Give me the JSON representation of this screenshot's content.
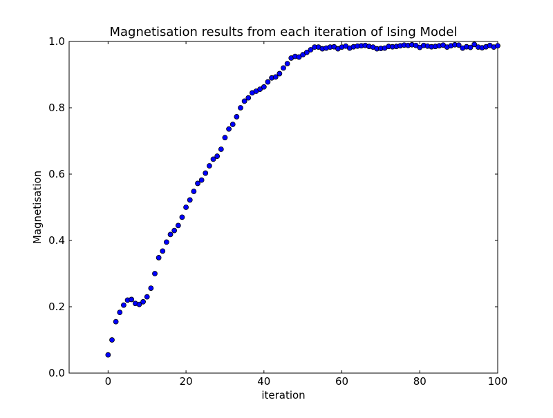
{
  "chart_data": {
    "type": "scatter",
    "title": "Magnetisation results from each iteration of Ising Model",
    "xlabel": "iteration",
    "ylabel": "Magnetisation",
    "xlim": [
      -10,
      100
    ],
    "ylim": [
      0.0,
      1.0
    ],
    "xticks": [
      0,
      20,
      40,
      60,
      80,
      100
    ],
    "xtick_labels": [
      "0",
      "20",
      "40",
      "60",
      "80",
      "100"
    ],
    "yticks": [
      0.0,
      0.2,
      0.4,
      0.6,
      0.8,
      1.0
    ],
    "ytick_labels": [
      "0.0",
      "0.2",
      "0.4",
      "0.6",
      "0.8",
      "1.0"
    ],
    "grid": false,
    "marker_color": "#0000ff",
    "marker_edge_color": "#000000",
    "series": [
      {
        "x": [
          0,
          1,
          2,
          3,
          4,
          5,
          6,
          7,
          8,
          9,
          10,
          11,
          12,
          13,
          14,
          15,
          16,
          17,
          18,
          19,
          20,
          21,
          22,
          23,
          24,
          25,
          26,
          27,
          28,
          29,
          30,
          31,
          32,
          33,
          34,
          35,
          36,
          37,
          38,
          39,
          40,
          41,
          42,
          43,
          44,
          45,
          46,
          47,
          48,
          49,
          50,
          51,
          52,
          53,
          54,
          55,
          56,
          57,
          58,
          59,
          60,
          61,
          62,
          63,
          64,
          65,
          66,
          67,
          68,
          69,
          70,
          71,
          72,
          73,
          74,
          75,
          76,
          77,
          78,
          79,
          80,
          81,
          82,
          83,
          84,
          85,
          86,
          87,
          88,
          89,
          90,
          91,
          92,
          93,
          94,
          95,
          96,
          97,
          98,
          99,
          100
        ],
        "y": [
          0.055,
          0.1,
          0.155,
          0.183,
          0.205,
          0.22,
          0.222,
          0.21,
          0.207,
          0.215,
          0.23,
          0.256,
          0.3,
          0.348,
          0.368,
          0.395,
          0.418,
          0.43,
          0.445,
          0.47,
          0.5,
          0.522,
          0.548,
          0.572,
          0.582,
          0.603,
          0.625,
          0.645,
          0.654,
          0.675,
          0.71,
          0.736,
          0.75,
          0.773,
          0.8,
          0.82,
          0.83,
          0.845,
          0.85,
          0.856,
          0.863,
          0.878,
          0.89,
          0.893,
          0.903,
          0.92,
          0.933,
          0.95,
          0.955,
          0.953,
          0.96,
          0.967,
          0.975,
          0.983,
          0.983,
          0.978,
          0.98,
          0.983,
          0.984,
          0.978,
          0.983,
          0.986,
          0.98,
          0.984,
          0.986,
          0.987,
          0.988,
          0.985,
          0.983,
          0.978,
          0.979,
          0.98,
          0.985,
          0.984,
          0.985,
          0.987,
          0.989,
          0.988,
          0.99,
          0.988,
          0.982,
          0.988,
          0.986,
          0.984,
          0.985,
          0.987,
          0.989,
          0.983,
          0.987,
          0.99,
          0.989,
          0.98,
          0.984,
          0.982,
          0.991,
          0.983,
          0.981,
          0.984,
          0.988,
          0.983,
          0.987
        ]
      }
    ]
  }
}
